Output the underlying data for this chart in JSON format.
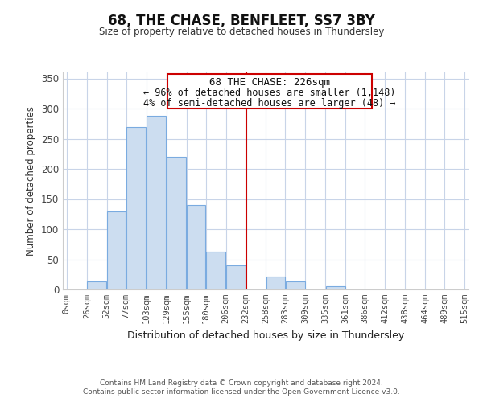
{
  "title": "68, THE CHASE, BENFLEET, SS7 3BY",
  "subtitle": "Size of property relative to detached houses in Thundersley",
  "xlabel": "Distribution of detached houses by size in Thundersley",
  "ylabel": "Number of detached properties",
  "bar_left_edges": [
    0,
    26,
    52,
    77,
    103,
    129,
    155,
    180,
    206,
    232,
    258,
    283,
    309,
    335,
    361,
    386,
    412,
    438,
    464,
    489
  ],
  "bar_widths": [
    26,
    26,
    25,
    26,
    26,
    26,
    25,
    26,
    26,
    26,
    25,
    26,
    26,
    26,
    25,
    26,
    26,
    26,
    25,
    26
  ],
  "bar_heights": [
    0,
    13,
    130,
    270,
    288,
    220,
    140,
    63,
    40,
    0,
    22,
    13,
    0,
    5,
    0,
    0,
    0,
    0,
    0,
    0
  ],
  "tick_labels": [
    "0sqm",
    "26sqm",
    "52sqm",
    "77sqm",
    "103sqm",
    "129sqm",
    "155sqm",
    "180sqm",
    "206sqm",
    "232sqm",
    "258sqm",
    "283sqm",
    "309sqm",
    "335sqm",
    "361sqm",
    "386sqm",
    "412sqm",
    "438sqm",
    "464sqm",
    "489sqm",
    "515sqm"
  ],
  "tick_positions": [
    0,
    26,
    52,
    77,
    103,
    129,
    155,
    180,
    206,
    232,
    258,
    283,
    309,
    335,
    361,
    386,
    412,
    438,
    464,
    489,
    515
  ],
  "bar_color": "#ccddf0",
  "bar_edge_color": "#7aabe0",
  "vline_x": 232,
  "vline_color": "#cc0000",
  "annotation_title": "68 THE CHASE: 226sqm",
  "annotation_line1": "← 96% of detached houses are smaller (1,148)",
  "annotation_line2": "4% of semi-detached houses are larger (48) →",
  "ylim": [
    0,
    360
  ],
  "yticks": [
    0,
    50,
    100,
    150,
    200,
    250,
    300,
    350
  ],
  "footer1": "Contains HM Land Registry data © Crown copyright and database right 2024.",
  "footer2": "Contains public sector information licensed under the Open Government Licence v3.0.",
  "bg_color": "#ffffff",
  "grid_color": "#c8d4e8"
}
